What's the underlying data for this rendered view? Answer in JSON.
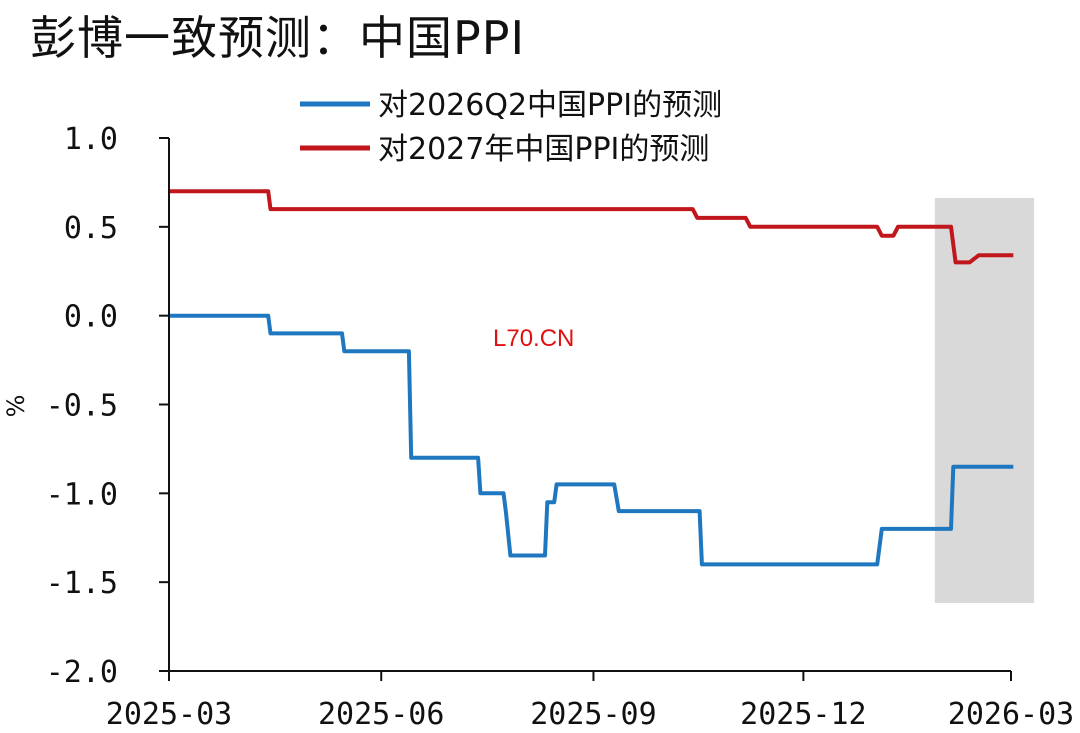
{
  "title": "彭博一致预测：中国PPI",
  "watermark": "L70.CN",
  "chart_data": {
    "type": "line",
    "ylabel": "%",
    "ylim": [
      -2.0,
      1.0
    ],
    "yticks": [
      "1.0",
      "0.5",
      "0.0",
      "-0.5",
      "-1.0",
      "-1.5",
      "-2.0"
    ],
    "ytick_values": [
      1.0,
      0.5,
      0.0,
      -0.5,
      -1.0,
      -1.5,
      -2.0
    ],
    "xticks": [
      "2025-03",
      "2025-06",
      "2025-09",
      "2025-12",
      "2026-03"
    ],
    "xtick_dates": [
      "2025-03-01",
      "2025-06-01",
      "2025-09-01",
      "2025-12-01",
      "2026-03-01"
    ],
    "xlim": [
      "2025-03-01",
      "2026-03-01"
    ],
    "grid": false,
    "legend_position": "top-center",
    "highlight_region": {
      "x_start": "2026-01-27",
      "x_end": "2026-03-11",
      "color": "#d9d9d9"
    },
    "series": [
      {
        "name": "对2026Q2中国PPI的预测",
        "color": "#1f77c0",
        "points": [
          [
            "2025-03-01",
            0.0
          ],
          [
            "2025-04-13",
            0.0
          ],
          [
            "2025-04-14",
            -0.1
          ],
          [
            "2025-05-15",
            -0.1
          ],
          [
            "2025-05-16",
            -0.2
          ],
          [
            "2025-06-13",
            -0.2
          ],
          [
            "2025-06-14",
            -0.8
          ],
          [
            "2025-07-13",
            -0.8
          ],
          [
            "2025-07-14",
            -1.0
          ],
          [
            "2025-07-24",
            -1.0
          ],
          [
            "2025-07-25",
            -1.1
          ],
          [
            "2025-07-27",
            -1.35
          ],
          [
            "2025-08-11",
            -1.35
          ],
          [
            "2025-08-12",
            -1.05
          ],
          [
            "2025-08-15",
            -1.05
          ],
          [
            "2025-08-16",
            -0.95
          ],
          [
            "2025-09-10",
            -0.95
          ],
          [
            "2025-09-12",
            -1.1
          ],
          [
            "2025-10-17",
            -1.1
          ],
          [
            "2025-10-18",
            -1.4
          ],
          [
            "2026-01-02",
            -1.4
          ],
          [
            "2026-01-04",
            -1.2
          ],
          [
            "2026-02-03",
            -1.2
          ],
          [
            "2026-02-04",
            -0.85
          ],
          [
            "2026-03-02",
            -0.85
          ]
        ]
      },
      {
        "name": "对2027年中国PPI的预测",
        "color": "#c0161c",
        "points": [
          [
            "2025-03-01",
            0.7
          ],
          [
            "2025-04-13",
            0.7
          ],
          [
            "2025-04-14",
            0.6
          ],
          [
            "2025-10-14",
            0.6
          ],
          [
            "2025-10-16",
            0.55
          ],
          [
            "2025-11-06",
            0.55
          ],
          [
            "2025-11-08",
            0.5
          ],
          [
            "2026-01-02",
            0.5
          ],
          [
            "2026-01-04",
            0.45
          ],
          [
            "2026-01-09",
            0.45
          ],
          [
            "2026-01-11",
            0.5
          ],
          [
            "2026-02-03",
            0.5
          ],
          [
            "2026-02-05",
            0.3
          ],
          [
            "2026-02-11",
            0.3
          ],
          [
            "2026-02-15",
            0.34
          ],
          [
            "2026-03-02",
            0.34
          ]
        ]
      }
    ]
  }
}
